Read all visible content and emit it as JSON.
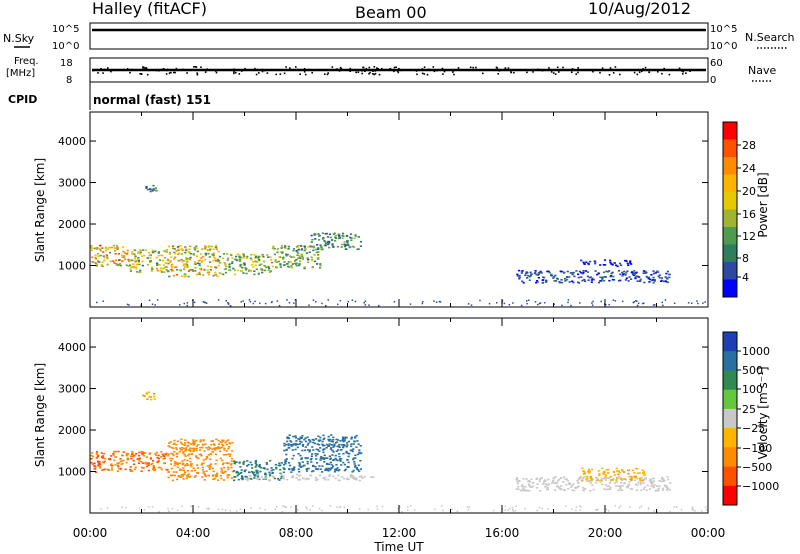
{
  "header": {
    "title": "Halley (fitACF)",
    "beam": "Beam 00",
    "date": "10/Aug/2012"
  },
  "panels": {
    "nsky": {
      "label": "N.Sky",
      "top": "10^5",
      "bottom": "10^0"
    },
    "nsearch": {
      "label": "N.Search",
      "top": "10^5",
      "bottom": "10^0"
    },
    "freq": {
      "label_line1": "Freq.",
      "label_line2": "[MHz]",
      "top": "18",
      "bottom": "8"
    },
    "nave": {
      "label": "Nave",
      "top": "60",
      "bottom": "0"
    },
    "cpid": {
      "label": "CPID",
      "value": "normal (fast) 151"
    }
  },
  "power_colorbar": {
    "label": "Power [dB]",
    "ticks": [
      "28",
      "24",
      "20",
      "16",
      "12",
      "8",
      "4"
    ],
    "colors": [
      "#ff0000",
      "#ff5000",
      "#ff8c00",
      "#ffb400",
      "#e8c800",
      "#a0b432",
      "#4e9a4e",
      "#2e7d5e",
      "#2d4aa0",
      "#0000ff"
    ]
  },
  "velocity_colorbar": {
    "label": "Velocity [m s⁻¹]",
    "ticks": [
      "1000",
      "500",
      "100",
      "25",
      "−25",
      "−100",
      "−500",
      "−1000"
    ],
    "colors": [
      "#1e3fb4",
      "#2870a0",
      "#2e8a4e",
      "#64c83c",
      "#c8c8c8",
      "#ffb400",
      "#ff8c00",
      "#ff5000",
      "#ff0000"
    ]
  },
  "axes": {
    "ylabel": "Slant Range [km]",
    "xlabel": "Time UT",
    "yticks": [
      "4000",
      "3000",
      "2000",
      "1000"
    ],
    "xticks": [
      "00:00",
      "04:00",
      "08:00",
      "12:00",
      "16:00",
      "20:00",
      "00:00"
    ]
  },
  "chart_data": [
    {
      "type": "heatmap",
      "name": "Power",
      "x_range_hours": [
        0,
        24
      ],
      "ylim": [
        0,
        4700
      ],
      "regions": [
        {
          "t0": 0.0,
          "t1": 1.5,
          "r0": 1000,
          "r1": 1500,
          "value": 20
        },
        {
          "t0": 1.5,
          "t1": 3.0,
          "r0": 850,
          "r1": 1400,
          "value": 16
        },
        {
          "t0": 3.0,
          "t1": 5.0,
          "r0": 750,
          "r1": 1500,
          "value": 18
        },
        {
          "t0": 5.0,
          "t1": 7.0,
          "r0": 800,
          "r1": 1300,
          "value": 14
        },
        {
          "t0": 7.0,
          "t1": 9.0,
          "r0": 950,
          "r1": 1500,
          "value": 12
        },
        {
          "t0": 8.5,
          "t1": 10.5,
          "r0": 1400,
          "r1": 1800,
          "value": 10
        },
        {
          "t0": 2.0,
          "t1": 2.6,
          "r0": 2750,
          "r1": 2950,
          "value": 8
        },
        {
          "t0": 16.5,
          "t1": 22.5,
          "r0": 600,
          "r1": 900,
          "value": 6
        },
        {
          "t0": 19.0,
          "t1": 21.0,
          "r0": 1000,
          "r1": 1150,
          "value": 4
        }
      ]
    },
    {
      "type": "heatmap",
      "name": "Velocity",
      "x_range_hours": [
        0,
        24
      ],
      "ylim": [
        0,
        4700
      ],
      "regions": [
        {
          "t0": 0.0,
          "t1": 3.0,
          "r0": 1000,
          "r1": 1500,
          "value": -300
        },
        {
          "t0": 3.0,
          "t1": 5.5,
          "r0": 800,
          "r1": 1800,
          "value": -200
        },
        {
          "t0": 5.5,
          "t1": 7.5,
          "r0": 800,
          "r1": 1300,
          "value": 100
        },
        {
          "t0": 7.5,
          "t1": 10.5,
          "r0": 1000,
          "r1": 1900,
          "value": 300
        },
        {
          "t0": 6.0,
          "t1": 11.0,
          "r0": 800,
          "r1": 950,
          "value": 0
        },
        {
          "t0": 2.0,
          "t1": 2.6,
          "r0": 2750,
          "r1": 2950,
          "value": -100
        },
        {
          "t0": 16.5,
          "t1": 22.5,
          "r0": 550,
          "r1": 900,
          "value": 0
        },
        {
          "t0": 19.0,
          "t1": 21.5,
          "r0": 800,
          "r1": 1100,
          "value": -80
        }
      ]
    }
  ]
}
